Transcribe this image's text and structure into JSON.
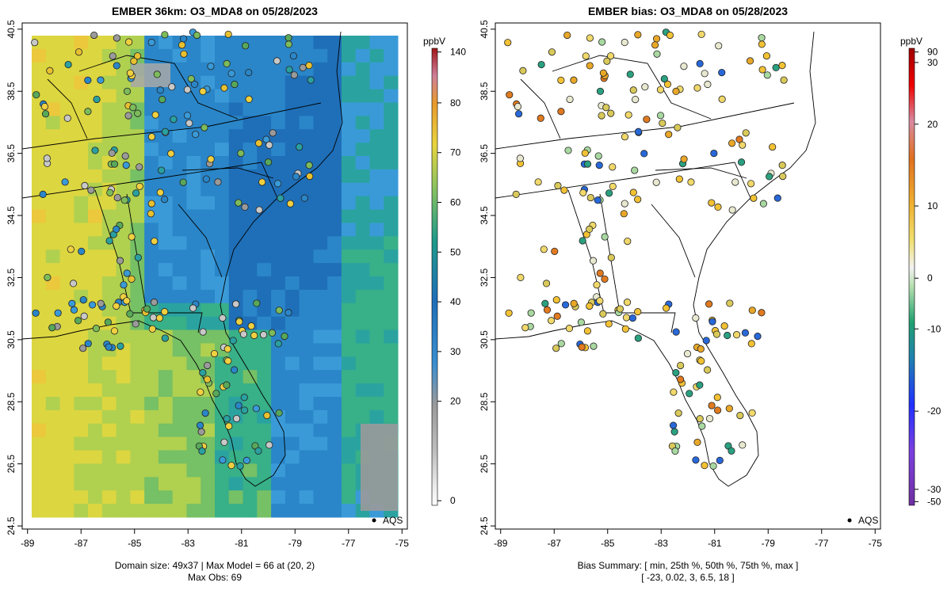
{
  "chart_data": [
    {
      "type": "heatmap",
      "title": "EMBER 36km: O3_MDA8 on 05/28/2023",
      "x_ticks": [
        -89,
        -87,
        -85,
        -83,
        -81,
        -79,
        -77,
        -75
      ],
      "y_ticks": [
        24.5,
        26.5,
        28.5,
        30.5,
        32.5,
        34.5,
        36.5,
        38.5,
        40.5
      ],
      "xlim": [
        -89.2,
        -74.8
      ],
      "ylim": [
        24.4,
        40.7
      ],
      "colorbar": {
        "unit": "ppbV",
        "ticks": [
          0,
          20,
          30,
          40,
          50,
          60,
          70,
          80,
          140
        ],
        "max": 140
      },
      "legend_label": "AQS",
      "footer_line1": "Domain size: 49x37 | Max Model = 66 at (20, 2)",
      "footer_line2": "Max Obs: 69",
      "domain_size": "49x37",
      "max_model": 66,
      "max_model_location": [
        20,
        2
      ],
      "max_obs": 69
    },
    {
      "type": "scatter",
      "title": "EMBER bias: O3_MDA8 on 05/28/2023",
      "x_ticks": [
        -89,
        -87,
        -85,
        -83,
        -81,
        -79,
        -77,
        -75
      ],
      "y_ticks": [
        24.5,
        26.5,
        28.5,
        30.5,
        32.5,
        34.5,
        36.5,
        38.5,
        40.5
      ],
      "xlim": [
        -89.2,
        -74.8
      ],
      "ylim": [
        24.4,
        40.7
      ],
      "colorbar": {
        "unit": "ppbV",
        "ticks": [
          -50,
          -30,
          -20,
          -10,
          0,
          10,
          20,
          30,
          90
        ]
      },
      "legend_label": "AQS",
      "footer_line1": "Bias Summary: [ min, 25th %, 50th %, 75th %, max ]",
      "footer_line2": "[ -23,   0.02,   3,   6.5,   18 ]",
      "bias_summary": {
        "min": -23,
        "p25": 0.02,
        "p50": 3,
        "p75": 6.5,
        "max": 18
      }
    }
  ]
}
